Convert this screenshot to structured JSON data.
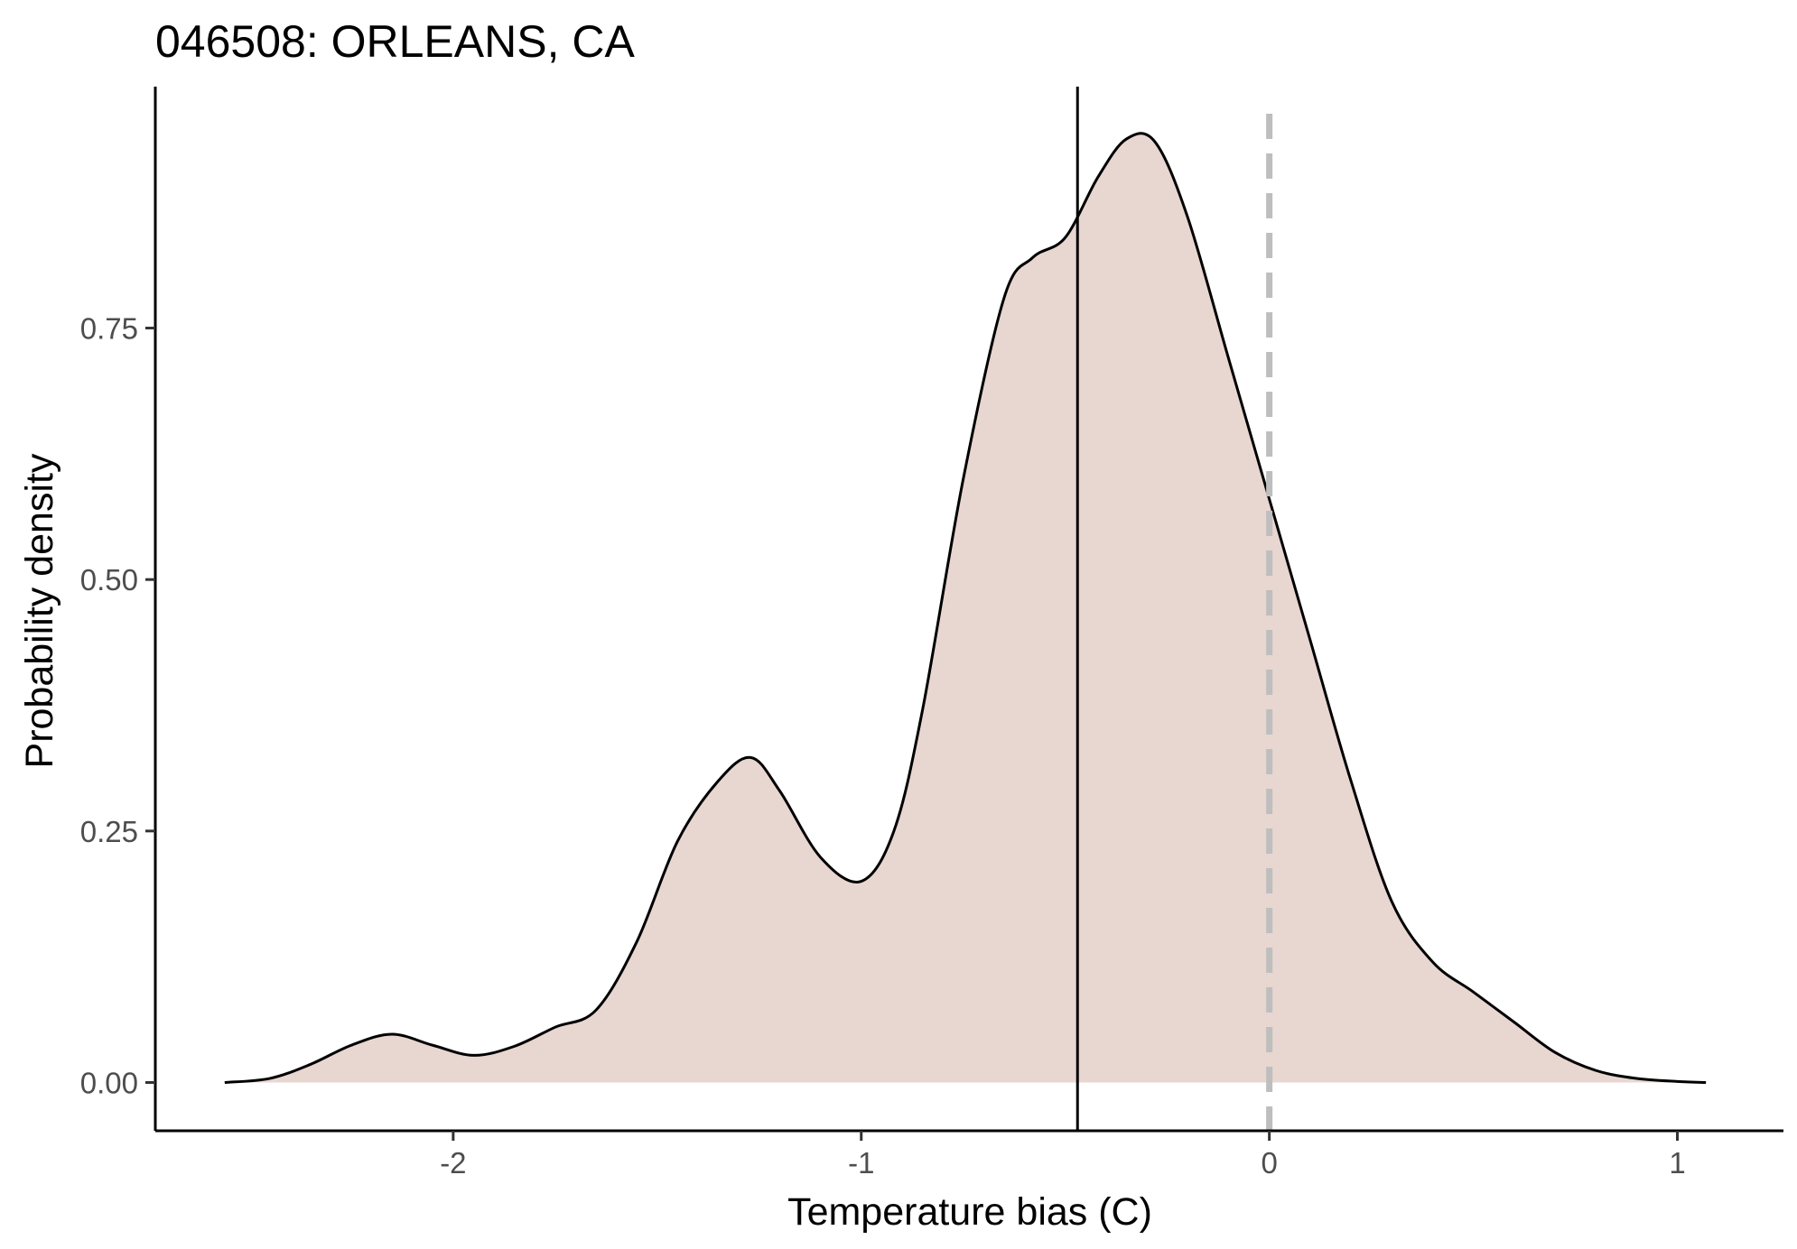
{
  "chart_data": {
    "type": "area",
    "title": "046508: ORLEANS, CA",
    "xlabel": "Temperature bias (C)",
    "ylabel": "Probability density",
    "xlim": [
      -2.73,
      1.26
    ],
    "ylim": [
      -0.048,
      0.99
    ],
    "x_ticks": [
      {
        "value": -2,
        "label": "-2"
      },
      {
        "value": -1,
        "label": "-1"
      },
      {
        "value": 0,
        "label": "0"
      },
      {
        "value": 1,
        "label": "1"
      }
    ],
    "y_ticks": [
      {
        "value": 0.0,
        "label": "0.00"
      },
      {
        "value": 0.25,
        "label": "0.25"
      },
      {
        "value": 0.5,
        "label": "0.50"
      },
      {
        "value": 0.75,
        "label": "0.75"
      }
    ],
    "grid": false,
    "series": [
      {
        "fill_color": "#e8d6d1",
        "line_color": "#000000",
        "x": [
          -2.56,
          -2.45,
          -2.35,
          -2.25,
          -2.15,
          -2.05,
          -1.95,
          -1.85,
          -1.75,
          -1.65,
          -1.55,
          -1.45,
          -1.35,
          -1.27,
          -1.2,
          -1.1,
          -1.0,
          -0.92,
          -0.85,
          -0.75,
          -0.65,
          -0.58,
          -0.5,
          -0.42,
          -0.35,
          -0.28,
          -0.2,
          -0.1,
          0.0,
          0.1,
          0.2,
          0.3,
          0.4,
          0.5,
          0.6,
          0.7,
          0.8,
          0.9,
          1.0,
          1.07
        ],
        "y": [
          0.0,
          0.004,
          0.018,
          0.037,
          0.048,
          0.037,
          0.027,
          0.036,
          0.055,
          0.072,
          0.14,
          0.24,
          0.3,
          0.323,
          0.29,
          0.224,
          0.2,
          0.25,
          0.37,
          0.6,
          0.78,
          0.82,
          0.84,
          0.9,
          0.938,
          0.935,
          0.86,
          0.72,
          0.58,
          0.44,
          0.3,
          0.18,
          0.12,
          0.09,
          0.06,
          0.03,
          0.012,
          0.004,
          0.001,
          0.0
        ]
      }
    ],
    "reference_lines": [
      {
        "axis": "x",
        "value": -0.47,
        "style": "solid",
        "color": "#000000"
      },
      {
        "axis": "x",
        "value": 0.0,
        "style": "dashed",
        "color": "#bebebe"
      }
    ]
  }
}
